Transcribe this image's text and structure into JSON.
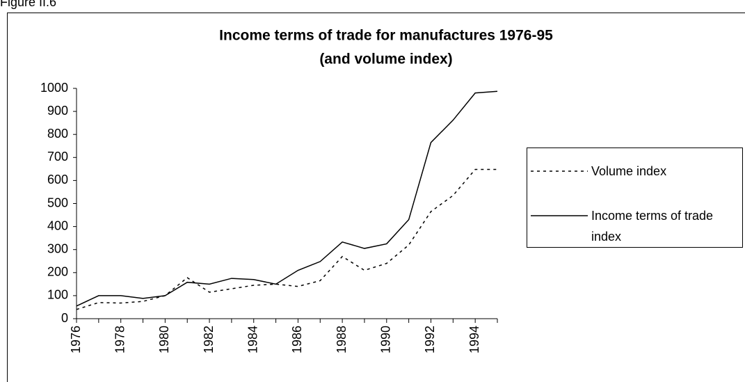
{
  "figure_label": "Figure II.6",
  "chart_data": {
    "type": "line",
    "title": "Income terms of trade for manufactures 1976-95",
    "subtitle": "(and volume index)",
    "categories": [
      "1976",
      null,
      "1978",
      null,
      "1980",
      null,
      "1982",
      null,
      "1984",
      null,
      "1986",
      null,
      "1988",
      null,
      "1990",
      null,
      "1992",
      null,
      "1994",
      null
    ],
    "series": [
      {
        "name": "Volume index",
        "color": "#000000",
        "dash": true,
        "values": [
          40,
          70,
          68,
          75,
          100,
          178,
          115,
          130,
          145,
          150,
          140,
          165,
          270,
          210,
          240,
          320,
          465,
          535,
          648,
          648
        ]
      },
      {
        "name": "Income terms of trade index",
        "color": "#000000",
        "dash": false,
        "values": [
          55,
          100,
          100,
          88,
          100,
          158,
          150,
          175,
          170,
          150,
          210,
          248,
          333,
          305,
          325,
          430,
          765,
          862,
          980,
          987
        ]
      }
    ],
    "ylim": [
      0,
      1000
    ],
    "yticks": [
      0,
      100,
      200,
      300,
      400,
      500,
      600,
      700,
      800,
      900,
      1000
    ],
    "grid": false,
    "legend": "right"
  }
}
